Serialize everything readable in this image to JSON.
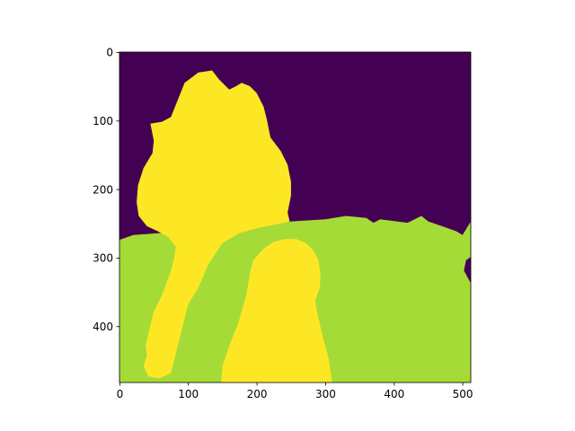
{
  "chart_data": {
    "type": "heatmap",
    "title": "",
    "xlabel": "",
    "ylabel": "",
    "xlim": [
      0,
      512
    ],
    "ylim": [
      484,
      0
    ],
    "x_ticks": [
      "0",
      "100",
      "200",
      "300",
      "400",
      "500"
    ],
    "y_ticks": [
      "0",
      "100",
      "200",
      "300",
      "400"
    ],
    "x_tick_values": [
      0,
      100,
      200,
      300,
      400,
      500
    ],
    "y_tick_values": [
      0,
      100,
      200,
      300,
      400
    ],
    "colormap": "viridis",
    "classes": [
      {
        "value": 0,
        "color": "#440154"
      },
      {
        "value": 1,
        "color": "#a5db36"
      },
      {
        "value": 2,
        "color": "#fde725"
      }
    ],
    "grid": false,
    "regions": {
      "ground": [
        [
          0,
          275
        ],
        [
          20,
          268
        ],
        [
          60,
          265
        ],
        [
          120,
          262
        ],
        [
          190,
          255
        ],
        [
          250,
          248
        ],
        [
          300,
          245
        ],
        [
          330,
          240
        ],
        [
          360,
          243
        ],
        [
          370,
          250
        ],
        [
          380,
          245
        ],
        [
          420,
          250
        ],
        [
          440,
          240
        ],
        [
          450,
          248
        ],
        [
          470,
          255
        ],
        [
          490,
          262
        ],
        [
          500,
          268
        ],
        [
          512,
          248
        ],
        [
          512,
          484
        ],
        [
          0,
          484
        ]
      ],
      "upper_figure": [
        [
          62,
          102
        ],
        [
          75,
          95
        ],
        [
          85,
          70
        ],
        [
          95,
          45
        ],
        [
          115,
          30
        ],
        [
          135,
          27
        ],
        [
          145,
          40
        ],
        [
          160,
          55
        ],
        [
          170,
          50
        ],
        [
          178,
          45
        ],
        [
          190,
          50
        ],
        [
          200,
          60
        ],
        [
          210,
          80
        ],
        [
          215,
          100
        ],
        [
          220,
          125
        ],
        [
          235,
          145
        ],
        [
          245,
          165
        ],
        [
          250,
          190
        ],
        [
          250,
          210
        ],
        [
          245,
          235
        ],
        [
          248,
          248
        ],
        [
          230,
          252
        ],
        [
          200,
          258
        ],
        [
          175,
          265
        ],
        [
          150,
          280
        ],
        [
          130,
          310
        ],
        [
          115,
          345
        ],
        [
          100,
          370
        ],
        [
          90,
          410
        ],
        [
          80,
          450
        ],
        [
          75,
          470
        ],
        [
          58,
          478
        ],
        [
          42,
          475
        ],
        [
          35,
          460
        ],
        [
          40,
          445
        ],
        [
          38,
          430
        ],
        [
          45,
          400
        ],
        [
          50,
          380
        ],
        [
          60,
          360
        ],
        [
          68,
          340
        ],
        [
          75,
          320
        ],
        [
          80,
          300
        ],
        [
          82,
          285
        ],
        [
          70,
          270
        ],
        [
          55,
          262
        ],
        [
          40,
          255
        ],
        [
          28,
          240
        ],
        [
          25,
          220
        ],
        [
          27,
          195
        ],
        [
          35,
          170
        ],
        [
          48,
          148
        ],
        [
          50,
          130
        ],
        [
          45,
          105
        ]
      ],
      "lower_figure": [
        [
          148,
          484
        ],
        [
          150,
          460
        ],
        [
          160,
          430
        ],
        [
          172,
          400
        ],
        [
          178,
          380
        ],
        [
          185,
          355
        ],
        [
          190,
          325
        ],
        [
          195,
          305
        ],
        [
          210,
          288
        ],
        [
          225,
          278
        ],
        [
          240,
          274
        ],
        [
          258,
          274
        ],
        [
          272,
          280
        ],
        [
          282,
          290
        ],
        [
          290,
          305
        ],
        [
          293,
          325
        ],
        [
          292,
          345
        ],
        [
          285,
          365
        ],
        [
          290,
          390
        ],
        [
          297,
          420
        ],
        [
          305,
          450
        ],
        [
          310,
          484
        ]
      ],
      "right_patch": [
        [
          512,
          300
        ],
        [
          505,
          305
        ],
        [
          502,
          320
        ],
        [
          510,
          335
        ],
        [
          512,
          338
        ]
      ]
    }
  }
}
